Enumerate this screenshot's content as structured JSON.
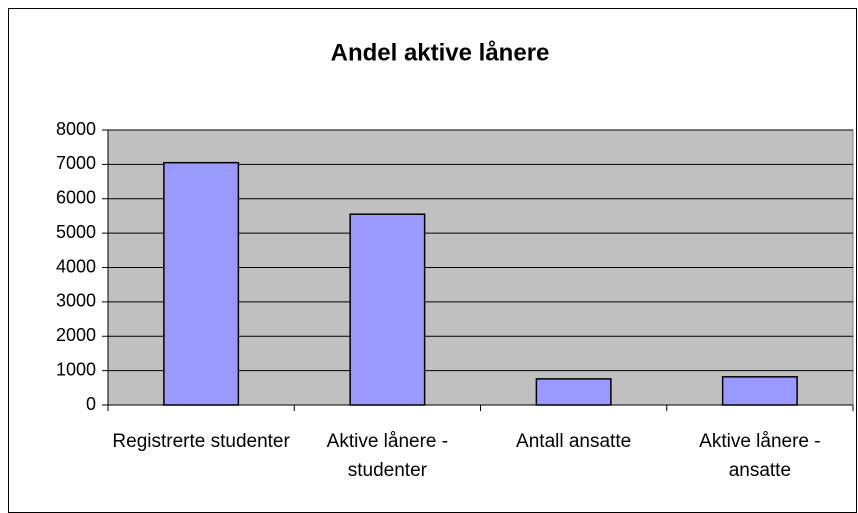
{
  "chart_data": {
    "type": "bar",
    "title": "Andel aktive lånere",
    "categories": [
      "Registrerte studenter",
      "Aktive lånere - studenter",
      "Antall ansatte",
      "Aktive lånere - ansatte"
    ],
    "values": [
      7050,
      5550,
      760,
      820
    ],
    "color": "#9999ff",
    "ylim": [
      0,
      8000
    ],
    "yticks": [
      0,
      1000,
      2000,
      3000,
      4000,
      5000,
      6000,
      7000,
      8000
    ],
    "grid": true
  }
}
